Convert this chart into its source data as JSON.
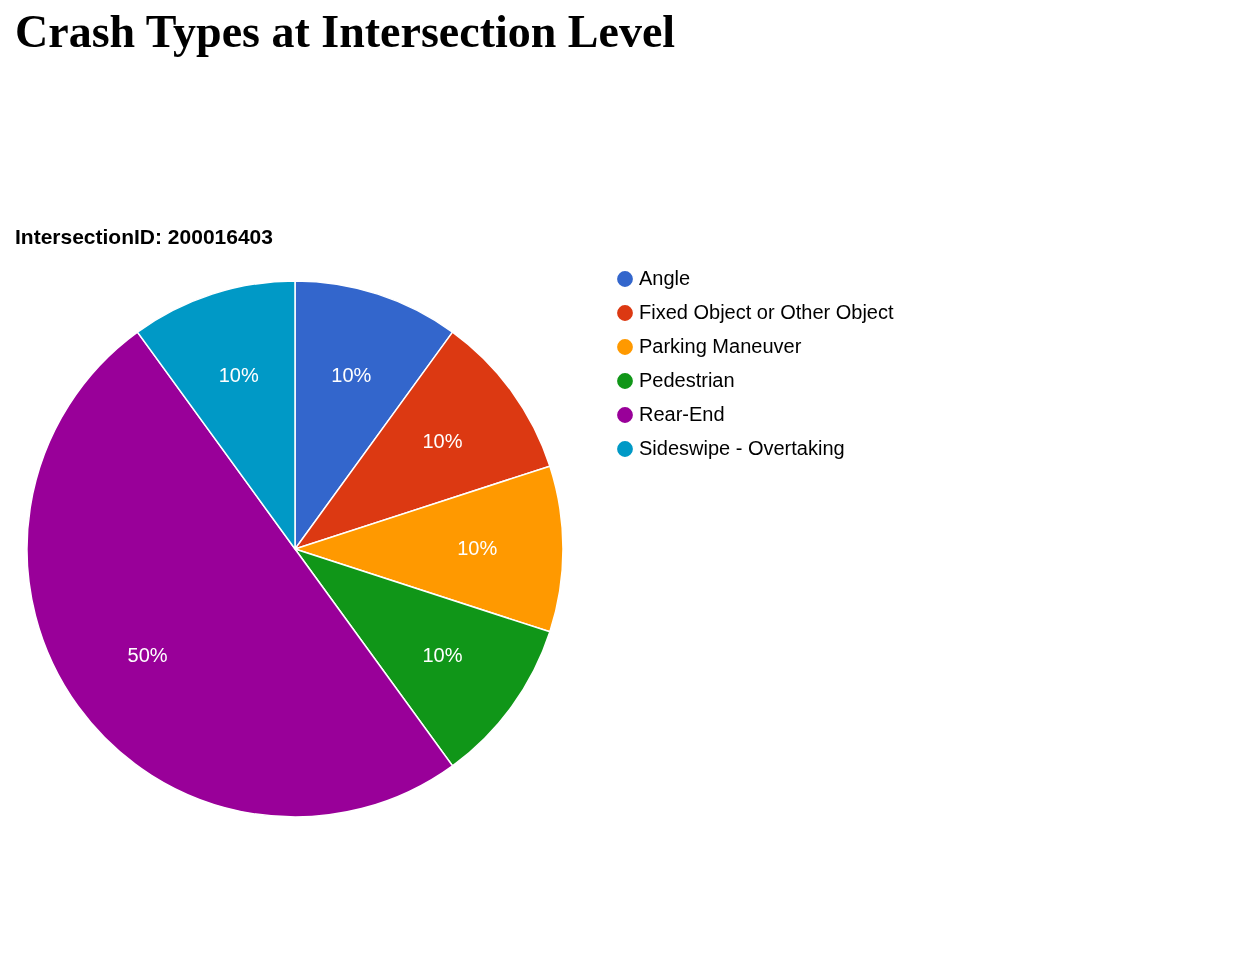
{
  "chart_data": {
    "type": "pie",
    "title": "Crash Types at Intersection Level",
    "subtitle": "IntersectionID: 200016403",
    "categories": [
      "Angle",
      "Fixed Object or Other Object",
      "Parking Maneuver",
      "Pedestrian",
      "Rear-End",
      "Sideswipe - Overtaking"
    ],
    "values": [
      10,
      10,
      10,
      10,
      50,
      10
    ],
    "colors": [
      "#3366cc",
      "#dc3912",
      "#ff9900",
      "#109618",
      "#990099",
      "#0099c6"
    ],
    "value_labels": [
      "10%",
      "10%",
      "10%",
      "10%",
      "50%",
      "10%"
    ],
    "legend": "right"
  }
}
